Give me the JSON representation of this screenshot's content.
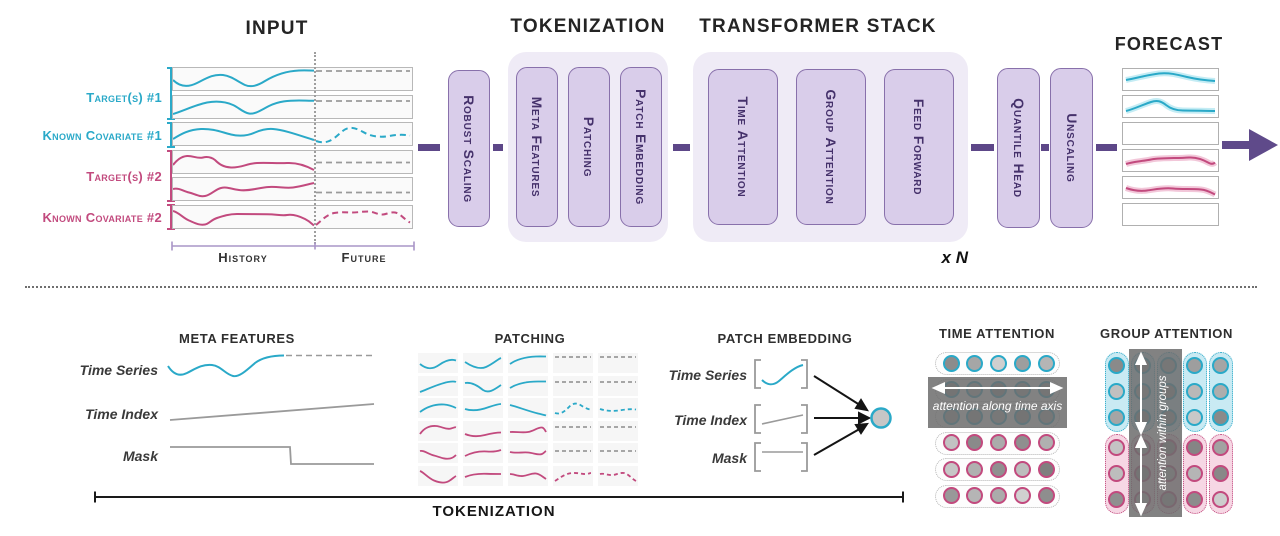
{
  "colors": {
    "teal": "#2aa9c8",
    "pink": "#c24a7e",
    "purple_connector": "#5d4788",
    "purple_box_fill": "#d9cdea",
    "purple_box_border": "#8870ab",
    "purple_box_text": "#45316b",
    "purple_container": "#efebf6",
    "gray_line": "#9a9a9a",
    "teal_band": "#c4ecf4",
    "pink_band": "#f2c7d9",
    "teal_group_bg": "#c9eaf3",
    "pink_group_bg": "#f6d7e4",
    "overlay_gray": "rgba(108,108,108,0.85)"
  },
  "top": {
    "input": {
      "title": "INPUT",
      "series_labels": [
        {
          "label": "Target(s) #1",
          "color": "teal"
        },
        {
          "label": "Known Covariate #1",
          "color": "teal"
        },
        {
          "label": "Target(s) #2",
          "color": "pink"
        },
        {
          "label": "Known Covariate #2",
          "color": "pink"
        }
      ],
      "axis": {
        "history": "History",
        "future": "Future"
      }
    },
    "headers": {
      "tokenization": "TOKENIZATION",
      "transformer": "TRANSFORMER STACK",
      "forecast": "FORECAST"
    },
    "stages": {
      "robust_scaling": "Robust Scaling",
      "meta_features": "Meta Features",
      "patching": "Patching",
      "patch_embedding": "Patch Embedding",
      "time_attention": "Time Attention",
      "group_attention": "Group Attention",
      "feed_forward": "Feed Forward",
      "quantile_head": "Quantile Head",
      "unscaling": "Unscaling",
      "repeat": "x N"
    }
  },
  "bottom": {
    "meta_features": {
      "title": "META FEATURES",
      "rows": [
        "Time Series",
        "Time Index",
        "Mask"
      ]
    },
    "patching": {
      "title": "PATCHING"
    },
    "patch_embedding": {
      "title": "PATCH EMBEDDING",
      "rows": [
        "Time Series",
        "Time Index",
        "Mask"
      ]
    },
    "time_attention": {
      "title": "TIME ATTENTION",
      "annotation": "attention along time axis",
      "circle_fills": [
        [
          "#8c8c8c",
          "#a6a6a6",
          "#cfcfcf",
          "#9e9e9e",
          "#b5b5b5"
        ],
        [
          "#a0a0a0",
          "#b8b8b8",
          "#9a9a9a",
          "#adadad",
          "#a5a5a5"
        ],
        [
          "#b0b0b0",
          "#a8a8a8",
          "#bdbdbd",
          "#9f9f9f",
          "#b3b3b3"
        ],
        [
          "#c2c2c2",
          "#8a8a8a",
          "#ababab",
          "#8f8f8f",
          "#b0b0b0"
        ],
        [
          "#c6c6c6",
          "#b0b0b0",
          "#909090",
          "#bdbdbd",
          "#7f7f7f"
        ],
        [
          "#999999",
          "#b5b5b5",
          "#ababab",
          "#d0d0d0",
          "#8e8e8e"
        ]
      ]
    },
    "group_attention": {
      "title": "GROUP ATTENTION",
      "annotation": "attention within groups",
      "circle_fills": [
        [
          "#8a8a8a",
          "#c0c0c0",
          "#a5a5a5",
          "#c4c4c4",
          "#bdbdbd",
          "#8f8f8f"
        ],
        [
          "#a8a8a8",
          "#b2b2b2",
          "#9c9c9c",
          "#b8b8b8",
          "#a0a0a0",
          "#c6c6c6"
        ],
        [
          "#b5b5b5",
          "#a0a0a0",
          "#aaaaaa",
          "#9a9a9a",
          "#c0c0c0",
          "#ababab"
        ],
        [
          "#9e9e9e",
          "#b8b8b8",
          "#c8c8c8",
          "#858585",
          "#b5b5b5",
          "#8c8c8c"
        ],
        [
          "#a5a5a5",
          "#adadad",
          "#8a8a8a",
          "#a2a2a2",
          "#888888",
          "#cccccc"
        ]
      ]
    },
    "bracket_label": "TOKENIZATION"
  }
}
